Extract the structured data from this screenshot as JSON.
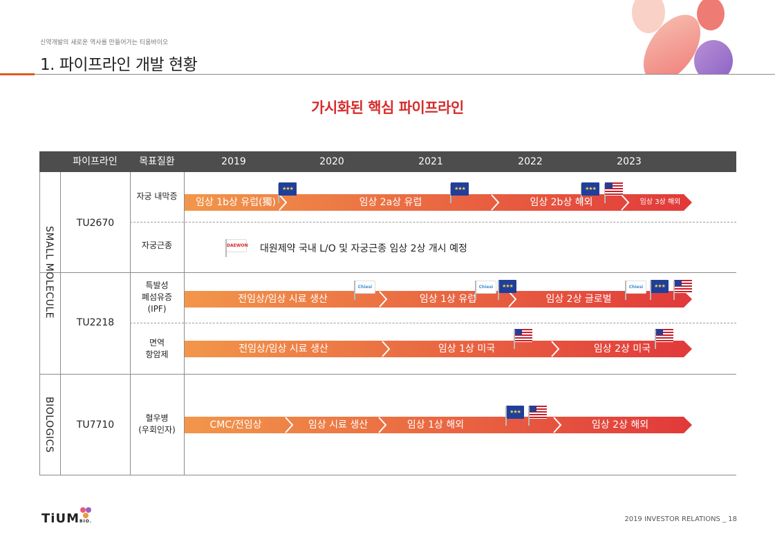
{
  "header": {
    "subtitle": "신약개발의 새로운 역사를 만들어가는 티움바이오",
    "title": "1. 파이프라인 개발 현황"
  },
  "headline": "가시화된 핵심 파이프라인",
  "table": {
    "columns": [
      "파이프라인",
      "목표질환",
      "2019",
      "2020",
      "2021",
      "2022",
      "2023"
    ],
    "groups": [
      {
        "label": "SMALL MOLECULE"
      },
      {
        "label": "BIOLOGICS"
      }
    ],
    "pipelines": [
      {
        "code": "TU2670",
        "rows": [
          {
            "target": "자궁 내막증",
            "segments": [
              "임상 1b상 유럽(獨)",
              "임상 2a상 유럽",
              "임상 2b상 해외",
              "임상 3상 해외"
            ]
          },
          {
            "target": "자궁근종",
            "note": "대원제약 국내 L/O 및 자궁근종 임상 2상 개시 예정",
            "partner": "DAEWON"
          }
        ]
      },
      {
        "code": "TU2218",
        "rows": [
          {
            "target_lines": [
              "특발성",
              "폐섬유증",
              "(IPF)"
            ],
            "segments": [
              "전임상/임상 시료 생산",
              "임상 1상 유럽",
              "임상 2상 글로벌"
            ],
            "partner": "Chiesi"
          },
          {
            "target_lines": [
              "면역",
              "항암제"
            ],
            "segments": [
              "전임상/임상 시료 생산",
              "임상 1상 미국",
              "임상 2상 미국"
            ]
          }
        ]
      },
      {
        "code": "TU7710",
        "rows": [
          {
            "target_lines": [
              "혈우병",
              "(우회인자)"
            ],
            "segments": [
              "CMC/전임상",
              "임상 시료 생산",
              "임상 1상 해외",
              "임상 2상 해외"
            ]
          }
        ]
      }
    ]
  },
  "logo": {
    "name": "TiUM",
    "suffix": "BIO."
  },
  "footer": "2019 INVESTOR RELATIONS _ 18",
  "colors": {
    "accent": "#d62b2b",
    "arrow_start": "#f0883e",
    "arrow_end": "#e23a36",
    "header_bg": "#4d4d4d"
  },
  "icons": [
    "eu-flag-icon",
    "us-flag-icon",
    "chiesi-flag-icon",
    "daewon-flag-icon"
  ]
}
